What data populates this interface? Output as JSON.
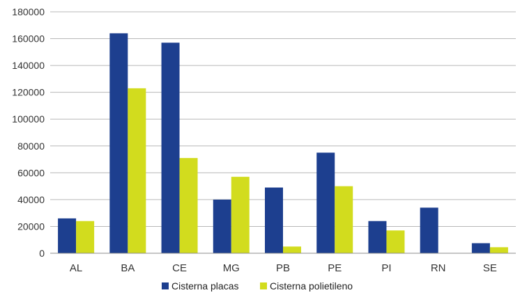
{
  "chart_data": {
    "type": "bar",
    "categories": [
      "AL",
      "BA",
      "CE",
      "MG",
      "PB",
      "PE",
      "PI",
      "RN",
      "SE"
    ],
    "series": [
      {
        "name": "Cisterna placas",
        "color": "#1d3f8f",
        "values": [
          26000,
          164000,
          157000,
          40000,
          49000,
          75000,
          24000,
          34000,
          7500
        ]
      },
      {
        "name": "Cisterna polietileno",
        "color": "#d2dc1e",
        "values": [
          24000,
          123000,
          71000,
          57000,
          5000,
          50000,
          17000,
          0,
          4500
        ]
      }
    ],
    "ylim": [
      0,
      180000
    ],
    "yticks": [
      0,
      20000,
      40000,
      60000,
      80000,
      100000,
      120000,
      140000,
      160000,
      180000
    ],
    "grid": true,
    "legend_position": "bottom"
  }
}
